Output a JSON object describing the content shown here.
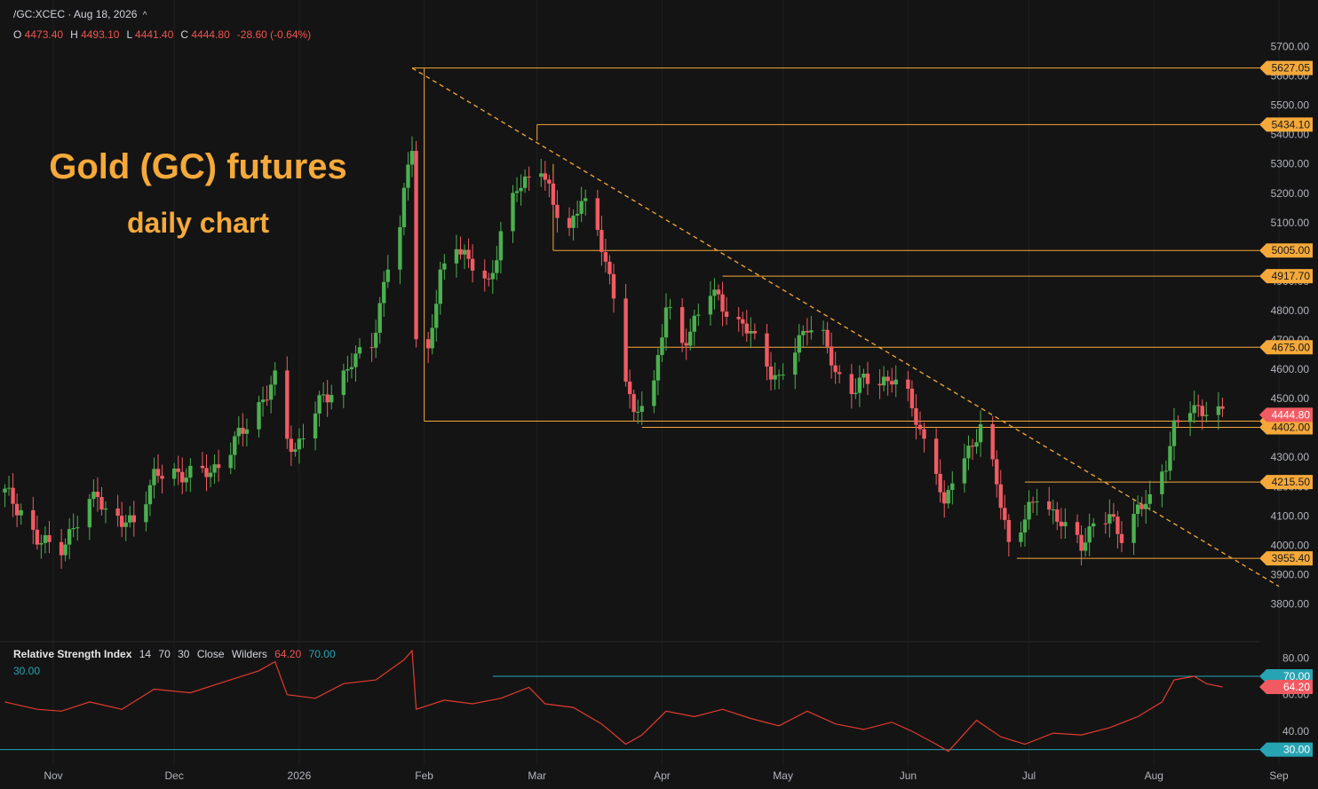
{
  "header": {
    "symbol": "/GC:XCEC",
    "date": "Aug 18, 2026",
    "caret": "^",
    "ohlc": [
      {
        "k": "O",
        "v": "4473.40"
      },
      {
        "k": "H",
        "v": "4493.10"
      },
      {
        "k": "L",
        "v": "4441.40"
      },
      {
        "k": "C",
        "v": "4444.80"
      }
    ],
    "change": "-28.60 (-0.64%)"
  },
  "overlay": {
    "title": "Gold (GC) futures",
    "subtitle": "daily chart"
  },
  "rsi_header": {
    "name": "Relative Strength Index",
    "params": [
      "14",
      "70",
      "30",
      "Close",
      "Wilders"
    ],
    "value": "64.20",
    "upper": "70.00",
    "lower": "30.00"
  },
  "colors": {
    "up": "#4caf50",
    "down": "#f05b63",
    "level": "#f5a93a",
    "rsi_line": "#e03b2e",
    "rsi_band": "#26a4b3",
    "bg": "#141414"
  },
  "chart_data": [
    {
      "type": "candlestick",
      "symbol": "/GC:XCEC",
      "x_axis_labels": [
        "Nov",
        "Dec",
        "2026",
        "Feb",
        "Mar",
        "Apr",
        "May",
        "Jun",
        "Jul",
        "Aug",
        "Sep"
      ],
      "y_ticks": [
        3800,
        3900,
        4000,
        4100,
        4200,
        4300,
        4400,
        4500,
        4600,
        4700,
        4800,
        4900,
        5000,
        5100,
        5200,
        5300,
        5400,
        5500,
        5600,
        5700
      ],
      "ylim": [
        3750,
        5750
      ],
      "close_trace": [
        [
          "2025-10-20",
          4180
        ],
        [
          "2025-10-24",
          4120
        ],
        [
          "2025-10-28",
          4010
        ],
        [
          "2025-11-03",
          4000
        ],
        [
          "2025-11-07",
          4070
        ],
        [
          "2025-11-12",
          4190
        ],
        [
          "2025-11-14",
          4110
        ],
        [
          "2025-11-18",
          4070
        ],
        [
          "2025-11-21",
          4090
        ],
        [
          "2025-11-26",
          4230
        ],
        [
          "2025-12-01",
          4250
        ],
        [
          "2025-12-05",
          4240
        ],
        [
          "2025-12-10",
          4250
        ],
        [
          "2025-12-15",
          4330
        ],
        [
          "2025-12-18",
          4390
        ],
        [
          "2025-12-22",
          4480
        ],
        [
          "2025-12-26",
          4560
        ],
        [
          "2025-12-29",
          4360
        ],
        [
          "2025-12-31",
          4330
        ],
        [
          "2026-01-06",
          4480
        ],
        [
          "2026-01-09",
          4530
        ],
        [
          "2026-01-14",
          4620
        ],
        [
          "2026-01-19",
          4690
        ],
        [
          "2026-01-23",
          4950
        ],
        [
          "2026-01-26",
          5080
        ],
        [
          "2026-01-28",
          5300
        ],
        [
          "2026-01-29",
          5380
        ],
        [
          "2026-01-30",
          4710
        ],
        [
          "2026-02-02",
          4650
        ],
        [
          "2026-02-05",
          4920
        ],
        [
          "2026-02-09",
          5040
        ],
        [
          "2026-02-12",
          4960
        ],
        [
          "2026-02-17",
          4890
        ],
        [
          "2026-02-20",
          5060
        ],
        [
          "2026-02-24",
          5210
        ],
        [
          "2026-02-27",
          5260
        ],
        [
          "2026-03-02",
          5300
        ],
        [
          "2026-03-05",
          5150
        ],
        [
          "2026-03-09",
          5080
        ],
        [
          "2026-03-12",
          5190
        ],
        [
          "2026-03-16",
          5050
        ],
        [
          "2026-03-18",
          4980
        ],
        [
          "2026-03-20",
          4850
        ],
        [
          "2026-03-23",
          4580
        ],
        [
          "2026-03-25",
          4420
        ],
        [
          "2026-03-27",
          4500
        ],
        [
          "2026-03-30",
          4560
        ],
        [
          "2026-04-02",
          4810
        ],
        [
          "2026-04-06",
          4680
        ],
        [
          "2026-04-09",
          4770
        ],
        [
          "2026-04-13",
          4860
        ],
        [
          "2026-04-16",
          4820
        ],
        [
          "2026-04-20",
          4760
        ],
        [
          "2026-04-23",
          4720
        ],
        [
          "2026-04-27",
          4620
        ],
        [
          "2026-04-30",
          4560
        ],
        [
          "2026-05-04",
          4660
        ],
        [
          "2026-05-07",
          4760
        ],
        [
          "2026-05-11",
          4710
        ],
        [
          "2026-05-14",
          4580
        ],
        [
          "2026-05-18",
          4540
        ],
        [
          "2026-05-21",
          4560
        ],
        [
          "2026-05-25",
          4550
        ],
        [
          "2026-05-28",
          4580
        ],
        [
          "2026-06-01",
          4500
        ],
        [
          "2026-06-04",
          4390
        ],
        [
          "2026-06-08",
          4270
        ],
        [
          "2026-06-10",
          4110
        ],
        [
          "2026-06-12",
          4230
        ],
        [
          "2026-06-16",
          4330
        ],
        [
          "2026-06-19",
          4390
        ],
        [
          "2026-06-23",
          4220
        ],
        [
          "2026-06-26",
          4010
        ],
        [
          "2026-06-30",
          4080
        ],
        [
          "2026-07-03",
          4180
        ],
        [
          "2026-07-07",
          4110
        ],
        [
          "2026-07-10",
          4050
        ],
        [
          "2026-07-14",
          4010
        ],
        [
          "2026-07-17",
          4070
        ],
        [
          "2026-07-21",
          4090
        ],
        [
          "2026-07-24",
          4040
        ],
        [
          "2026-07-28",
          4120
        ],
        [
          "2026-07-31",
          4150
        ],
        [
          "2026-08-04",
          4290
        ],
        [
          "2026-08-06",
          4400
        ],
        [
          "2026-08-10",
          4460
        ],
        [
          "2026-08-13",
          4470
        ],
        [
          "2026-08-18",
          4444.8
        ]
      ],
      "last_price": 4444.8,
      "levels": [
        5627.05,
        5434.1,
        5005.0,
        4917.7,
        4675.0,
        4423.2,
        4402.0,
        4215.5,
        3955.4
      ],
      "level_labels": [
        "5627.05",
        "5434.10",
        "5005.00",
        "4917.70",
        "4675.00",
        "4423.20",
        "4402.00",
        "4215.50",
        "3955.40"
      ],
      "last_label": "4444.80",
      "trendline": [
        [
          "2026-01-29",
          5627.05
        ],
        [
          "2026-09-01",
          3860
        ]
      ]
    },
    {
      "type": "line",
      "name": "Relative Strength Index",
      "y_ticks": [
        40,
        60,
        80
      ],
      "ylim": [
        25,
        85
      ],
      "bands": [
        30,
        70
      ],
      "band_labels": [
        "30.00",
        "70.00"
      ],
      "last_value": 64.2,
      "last_label": "64.20",
      "values": [
        [
          "2025-10-20",
          56
        ],
        [
          "2025-10-28",
          52
        ],
        [
          "2025-11-03",
          51
        ],
        [
          "2025-11-10",
          56
        ],
        [
          "2025-11-18",
          52
        ],
        [
          "2025-11-26",
          63
        ],
        [
          "2025-12-05",
          61
        ],
        [
          "2025-12-12",
          66
        ],
        [
          "2025-12-22",
          73
        ],
        [
          "2025-12-26",
          78
        ],
        [
          "2025-12-29",
          60
        ],
        [
          "2026-01-05",
          58
        ],
        [
          "2026-01-12",
          66
        ],
        [
          "2026-01-20",
          68
        ],
        [
          "2026-01-27",
          79
        ],
        [
          "2026-01-29",
          84
        ],
        [
          "2026-01-30",
          52
        ],
        [
          "2026-02-06",
          57
        ],
        [
          "2026-02-13",
          55
        ],
        [
          "2026-02-20",
          58
        ],
        [
          "2026-02-27",
          64
        ],
        [
          "2026-03-03",
          55
        ],
        [
          "2026-03-10",
          53
        ],
        [
          "2026-03-17",
          44
        ],
        [
          "2026-03-23",
          33
        ],
        [
          "2026-03-27",
          38
        ],
        [
          "2026-04-02",
          51
        ],
        [
          "2026-04-09",
          48
        ],
        [
          "2026-04-16",
          52
        ],
        [
          "2026-04-23",
          47
        ],
        [
          "2026-04-30",
          43
        ],
        [
          "2026-05-07",
          51
        ],
        [
          "2026-05-14",
          44
        ],
        [
          "2026-05-21",
          41
        ],
        [
          "2026-05-28",
          45
        ],
        [
          "2026-06-02",
          40
        ],
        [
          "2026-06-08",
          33
        ],
        [
          "2026-06-11",
          29
        ],
        [
          "2026-06-18",
          46
        ],
        [
          "2026-06-24",
          37
        ],
        [
          "2026-06-30",
          33
        ],
        [
          "2026-07-07",
          39
        ],
        [
          "2026-07-14",
          38
        ],
        [
          "2026-07-21",
          42
        ],
        [
          "2026-07-28",
          48
        ],
        [
          "2026-08-03",
          56
        ],
        [
          "2026-08-06",
          68
        ],
        [
          "2026-08-11",
          70
        ],
        [
          "2026-08-14",
          66
        ],
        [
          "2026-08-18",
          64.2
        ]
      ]
    }
  ]
}
